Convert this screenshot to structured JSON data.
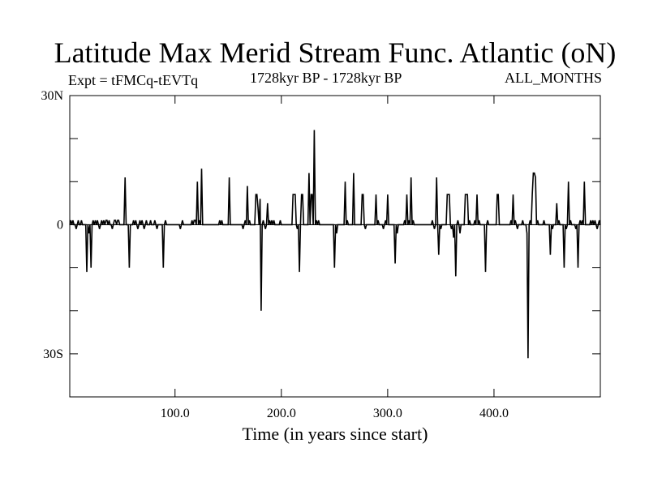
{
  "chart_data": {
    "type": "line",
    "title": "Latitude Max Merid Stream Func. Atlantic (oN)",
    "subtitle_left": "Expt = tFMCq-tEVTq",
    "subtitle_center": "1728kyr BP - 1728kyr BP",
    "subtitle_right": "ALL_MONTHS",
    "xlabel": "Time (in years since start)",
    "ylabel": "",
    "xlim": [
      1,
      500
    ],
    "ylim": [
      -40,
      30
    ],
    "x_ticks": [
      100,
      200,
      300,
      400
    ],
    "x_tick_labels": [
      "100.0",
      "200.0",
      "300.0",
      "400.0"
    ],
    "y_ticks": [
      30,
      0,
      -30
    ],
    "y_tick_labels": [
      "30N",
      "0",
      "30S"
    ],
    "series": [
      {
        "name": "tFMCq-tEVTq",
        "color": "#000000",
        "points": [
          [
            1,
            0
          ],
          [
            2,
            1
          ],
          [
            3,
            0
          ],
          [
            4,
            1
          ],
          [
            5,
            0
          ],
          [
            6,
            0
          ],
          [
            7,
            -1
          ],
          [
            8,
            0
          ],
          [
            9,
            1
          ],
          [
            10,
            0
          ],
          [
            11,
            0
          ],
          [
            12,
            1
          ],
          [
            13,
            0
          ],
          [
            14,
            0
          ],
          [
            16,
            0
          ],
          [
            17,
            -11
          ],
          [
            18,
            0
          ],
          [
            19,
            -2
          ],
          [
            20,
            0
          ],
          [
            21,
            -10
          ],
          [
            22,
            0
          ],
          [
            23,
            1
          ],
          [
            24,
            0
          ],
          [
            25,
            1
          ],
          [
            26,
            0
          ],
          [
            27,
            1
          ],
          [
            28,
            0
          ],
          [
            29,
            -1
          ],
          [
            30,
            0
          ],
          [
            31,
            1
          ],
          [
            32,
            0
          ],
          [
            33,
            1
          ],
          [
            34,
            0
          ],
          [
            35,
            1
          ],
          [
            36,
            1
          ],
          [
            37,
            0
          ],
          [
            38,
            1
          ],
          [
            39,
            0
          ],
          [
            40,
            0
          ],
          [
            41,
            -1
          ],
          [
            42,
            0
          ],
          [
            43,
            1
          ],
          [
            44,
            1
          ],
          [
            45,
            0
          ],
          [
            46,
            1
          ],
          [
            47,
            1
          ],
          [
            48,
            0
          ],
          [
            49,
            0
          ],
          [
            52,
            0
          ],
          [
            53,
            11
          ],
          [
            54,
            0
          ],
          [
            56,
            0
          ],
          [
            57,
            -10
          ],
          [
            58,
            0
          ],
          [
            60,
            0
          ],
          [
            61,
            1
          ],
          [
            62,
            0
          ],
          [
            63,
            1
          ],
          [
            64,
            0
          ],
          [
            65,
            -1
          ],
          [
            66,
            0
          ],
          [
            67,
            1
          ],
          [
            68,
            0
          ],
          [
            69,
            1
          ],
          [
            70,
            0
          ],
          [
            71,
            -1
          ],
          [
            72,
            0
          ],
          [
            73,
            1
          ],
          [
            74,
            0
          ],
          [
            76,
            0
          ],
          [
            77,
            1
          ],
          [
            78,
            0
          ],
          [
            80,
            0
          ],
          [
            81,
            1
          ],
          [
            82,
            0
          ],
          [
            83,
            -1
          ],
          [
            84,
            0
          ],
          [
            88,
            0
          ],
          [
            89,
            -10
          ],
          [
            90,
            0
          ],
          [
            91,
            1
          ],
          [
            92,
            0
          ],
          [
            104,
            0
          ],
          [
            105,
            -1
          ],
          [
            106,
            0
          ],
          [
            107,
            1
          ],
          [
            108,
            0
          ],
          [
            115,
            0
          ],
          [
            116,
            1
          ],
          [
            117,
            0
          ],
          [
            118,
            1
          ],
          [
            119,
            1
          ],
          [
            120,
            0
          ],
          [
            121,
            10
          ],
          [
            122,
            0
          ],
          [
            123,
            1
          ],
          [
            124,
            0
          ],
          [
            125,
            13
          ],
          [
            126,
            0
          ],
          [
            141,
            0
          ],
          [
            142,
            1
          ],
          [
            143,
            0
          ],
          [
            144,
            1
          ],
          [
            145,
            0
          ],
          [
            150,
            0
          ],
          [
            151,
            11
          ],
          [
            152,
            0
          ],
          [
            163,
            0
          ],
          [
            164,
            -1
          ],
          [
            165,
            0
          ],
          [
            166,
            1
          ],
          [
            167,
            0
          ],
          [
            168,
            9
          ],
          [
            169,
            0
          ],
          [
            170,
            1
          ],
          [
            171,
            0
          ],
          [
            175,
            0
          ],
          [
            176,
            7
          ],
          [
            177,
            7
          ],
          [
            178,
            4
          ],
          [
            179,
            0
          ],
          [
            180,
            6
          ],
          [
            181,
            -20
          ],
          [
            182,
            0
          ],
          [
            183,
            1
          ],
          [
            184,
            0
          ],
          [
            185,
            -1
          ],
          [
            186,
            0
          ],
          [
            187,
            5
          ],
          [
            188,
            0
          ],
          [
            189,
            1
          ],
          [
            190,
            0
          ],
          [
            191,
            1
          ],
          [
            192,
            0
          ],
          [
            193,
            1
          ],
          [
            194,
            0
          ],
          [
            198,
            0
          ],
          [
            199,
            1
          ],
          [
            200,
            0
          ],
          [
            210,
            0
          ],
          [
            211,
            7
          ],
          [
            212,
            7
          ],
          [
            213,
            7
          ],
          [
            214,
            0
          ],
          [
            215,
            -1
          ],
          [
            216,
            0
          ],
          [
            217,
            -11
          ],
          [
            218,
            0
          ],
          [
            219,
            7
          ],
          [
            220,
            7
          ],
          [
            221,
            0
          ],
          [
            225,
            0
          ],
          [
            226,
            12
          ],
          [
            227,
            0
          ],
          [
            228,
            7
          ],
          [
            229,
            7
          ],
          [
            230,
            0
          ],
          [
            231,
            22
          ],
          [
            232,
            0
          ],
          [
            233,
            1
          ],
          [
            234,
            0
          ],
          [
            235,
            1
          ],
          [
            236,
            0
          ],
          [
            249,
            0
          ],
          [
            250,
            -10
          ],
          [
            251,
            0
          ],
          [
            252,
            -2
          ],
          [
            253,
            0
          ],
          [
            259,
            0
          ],
          [
            260,
            10
          ],
          [
            261,
            0
          ],
          [
            262,
            1
          ],
          [
            263,
            0
          ],
          [
            267,
            0
          ],
          [
            268,
            12
          ],
          [
            269,
            0
          ],
          [
            275,
            0
          ],
          [
            276,
            7
          ],
          [
            277,
            7
          ],
          [
            278,
            0
          ],
          [
            279,
            -1
          ],
          [
            280,
            0
          ],
          [
            288,
            0
          ],
          [
            289,
            7
          ],
          [
            290,
            0
          ],
          [
            291,
            1
          ],
          [
            292,
            0
          ],
          [
            295,
            0
          ],
          [
            296,
            -1
          ],
          [
            297,
            0
          ],
          [
            298,
            1
          ],
          [
            299,
            0
          ],
          [
            300,
            7
          ],
          [
            301,
            0
          ],
          [
            306,
            0
          ],
          [
            307,
            -9
          ],
          [
            308,
            0
          ],
          [
            309,
            -2
          ],
          [
            310,
            0
          ],
          [
            315,
            0
          ],
          [
            316,
            1
          ],
          [
            317,
            0
          ],
          [
            318,
            7
          ],
          [
            319,
            0
          ],
          [
            320,
            1
          ],
          [
            321,
            0
          ],
          [
            322,
            11
          ],
          [
            323,
            0
          ],
          [
            324,
            1
          ],
          [
            325,
            0
          ],
          [
            341,
            0
          ],
          [
            342,
            1
          ],
          [
            343,
            0
          ],
          [
            344,
            -1
          ],
          [
            345,
            0
          ],
          [
            346,
            11
          ],
          [
            347,
            0
          ],
          [
            348,
            -7
          ],
          [
            349,
            0
          ],
          [
            350,
            -1
          ],
          [
            351,
            0
          ],
          [
            355,
            0
          ],
          [
            356,
            7
          ],
          [
            357,
            7
          ],
          [
            358,
            7
          ],
          [
            359,
            0
          ],
          [
            360,
            -1
          ],
          [
            361,
            0
          ],
          [
            362,
            -3
          ],
          [
            363,
            0
          ],
          [
            364,
            -12
          ],
          [
            365,
            0
          ],
          [
            366,
            1
          ],
          [
            367,
            0
          ],
          [
            368,
            -2
          ],
          [
            369,
            0
          ],
          [
            372,
            0
          ],
          [
            373,
            7
          ],
          [
            374,
            7
          ],
          [
            375,
            7
          ],
          [
            376,
            0
          ],
          [
            377,
            1
          ],
          [
            378,
            0
          ],
          [
            381,
            0
          ],
          [
            382,
            1
          ],
          [
            383,
            0
          ],
          [
            384,
            7
          ],
          [
            385,
            0
          ],
          [
            386,
            1
          ],
          [
            387,
            0
          ],
          [
            391,
            0
          ],
          [
            392,
            -11
          ],
          [
            393,
            0
          ],
          [
            394,
            1
          ],
          [
            395,
            0
          ],
          [
            402,
            0
          ],
          [
            403,
            7
          ],
          [
            404,
            7
          ],
          [
            405,
            0
          ],
          [
            415,
            0
          ],
          [
            416,
            1
          ],
          [
            417,
            0
          ],
          [
            418,
            7
          ],
          [
            419,
            0
          ],
          [
            420,
            1
          ],
          [
            421,
            0
          ],
          [
            422,
            -1
          ],
          [
            423,
            0
          ],
          [
            426,
            0
          ],
          [
            427,
            1
          ],
          [
            428,
            0
          ],
          [
            430,
            0
          ],
          [
            431,
            -2
          ],
          [
            432,
            -31
          ],
          [
            433,
            0
          ],
          [
            434,
            1
          ],
          [
            435,
            0
          ],
          [
            436,
            7
          ],
          [
            437,
            12
          ],
          [
            438,
            12
          ],
          [
            439,
            11
          ],
          [
            440,
            0
          ],
          [
            441,
            1
          ],
          [
            442,
            0
          ],
          [
            446,
            0
          ],
          [
            447,
            1
          ],
          [
            448,
            0
          ],
          [
            452,
            0
          ],
          [
            453,
            -7
          ],
          [
            454,
            0
          ],
          [
            455,
            -1
          ],
          [
            456,
            0
          ],
          [
            458,
            0
          ],
          [
            459,
            5
          ],
          [
            460,
            0
          ],
          [
            461,
            1
          ],
          [
            462,
            0
          ],
          [
            465,
            0
          ],
          [
            466,
            -10
          ],
          [
            467,
            0
          ],
          [
            468,
            -1
          ],
          [
            469,
            0
          ],
          [
            470,
            10
          ],
          [
            471,
            0
          ],
          [
            472,
            1
          ],
          [
            473,
            0
          ],
          [
            476,
            0
          ],
          [
            477,
            -1
          ],
          [
            478,
            0
          ],
          [
            479,
            -10
          ],
          [
            480,
            0
          ],
          [
            481,
            1
          ],
          [
            482,
            0
          ],
          [
            483,
            1
          ],
          [
            484,
            0
          ],
          [
            485,
            10
          ],
          [
            486,
            0
          ],
          [
            490,
            0
          ],
          [
            491,
            1
          ],
          [
            492,
            0
          ],
          [
            493,
            1
          ],
          [
            494,
            0
          ],
          [
            495,
            1
          ],
          [
            496,
            0
          ],
          [
            497,
            -1
          ],
          [
            498,
            0
          ],
          [
            499,
            1
          ],
          [
            500,
            0
          ]
        ]
      }
    ]
  }
}
